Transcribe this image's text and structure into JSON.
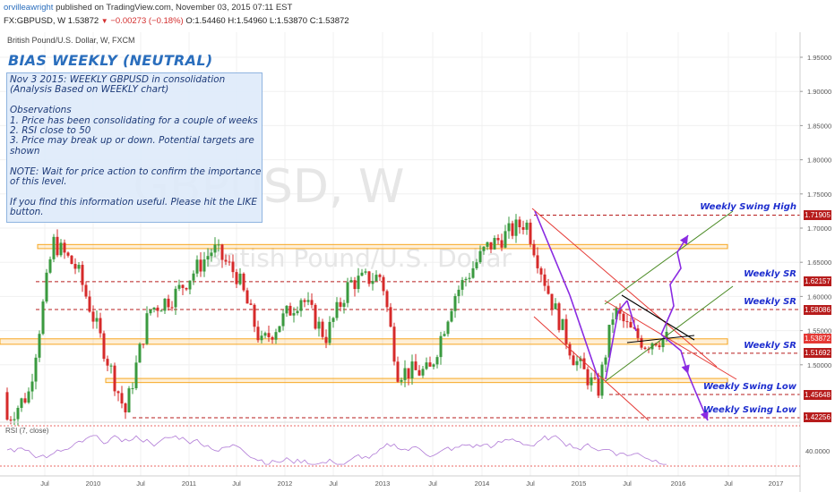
{
  "header": {
    "author": "orvilleawright",
    "published": "published on TradingView.com, November 03, 2015 07:11 EST",
    "symbol": "FX:GBPUSD, W",
    "last": "1.53872",
    "change": "−0.00273 (−0.18%)",
    "ohlc": "O:1.54460 H:1.54960 L:1.53870 C:1.53872"
  },
  "chart_title": "British Pound/U.S. Dollar, W, FXCM",
  "watermark": {
    "symbol": "GBPUSD, W",
    "name": "British Pound/U.S. Dollar"
  },
  "bias_title": "BIAS WEEKLY (NEUTRAL)",
  "note_lines": [
    "Nov 3 2015: WEEKLY GBPUSD in consolidation",
    "(Analysis Based on WEEKLY chart)",
    "",
    "Observations",
    "1. Price has been consolidating for a couple of weeks",
    "2. RSI close to 50",
    "3. Price may break up or down. Potential targets are",
    "shown",
    "",
    "NOTE: Wait for price action to confirm the importance",
    "of this level.",
    "",
    "If you find this information useful. Please hit the LIKE",
    "button."
  ],
  "level_labels": [
    {
      "text": "Weekly Swing High",
      "price": 1.71905
    },
    {
      "text": "Weekly SR",
      "price": 1.62157
    },
    {
      "text": "Weekly SR",
      "price": 1.58086
    },
    {
      "text": "Weekly SR",
      "price": 1.51692
    },
    {
      "text": "Weekly Swing Low",
      "price": 1.45648
    },
    {
      "text": "Weekly Swing Low",
      "price": 1.42256
    }
  ],
  "price_tags": [
    {
      "text": "1.71905",
      "color": "#b71c1c"
    },
    {
      "text": "1.62157",
      "color": "#b71c1c"
    },
    {
      "text": "1.58086",
      "color": "#b71c1c"
    },
    {
      "text": "1.53872",
      "color": "#e53935"
    },
    {
      "text": "1.51692",
      "color": "#b71c1c"
    },
    {
      "text": "1.45648",
      "color": "#b71c1c"
    },
    {
      "text": "1.42256",
      "color": "#b71c1c"
    }
  ],
  "rsi_label": "RSI (7, close)",
  "rsi_tick": "40.0000",
  "colors": {
    "up_candle": "#3a9a3f",
    "down_candle": "#d62a2a",
    "sr_line": "#b71c1c",
    "zone": "#f7a823",
    "channel_red": "#e53935",
    "channel_green": "#4a8a23",
    "arrow": "#8a2be2",
    "rsi_line": "#b07ad6",
    "label_blue": "#1f2fcf"
  },
  "chart_data": {
    "type": "candlestick",
    "title": "British Pound/U.S. Dollar, W, FXCM",
    "y_range": [
      1.395,
      1.985
    ],
    "y_ticks": [
      1.95,
      1.9,
      1.85,
      1.8,
      1.75,
      1.7,
      1.65,
      1.6,
      1.55,
      1.5
    ],
    "x_ticks": [
      "Jul",
      "2010",
      "Jul",
      "2011",
      "Jul",
      "2012",
      "Jul",
      "2013",
      "Jul",
      "2014",
      "Jul",
      "2015",
      "Jul",
      "2016",
      "Jul",
      "2017"
    ],
    "horizontal_levels": [
      1.71905,
      1.62157,
      1.58086,
      1.51692,
      1.45648,
      1.42256
    ],
    "zones": [
      [
        1.67,
        1.676
      ],
      [
        1.53,
        1.538
      ],
      [
        1.474,
        1.48
      ]
    ],
    "last_close": 1.53872,
    "approx_price_path": [
      [
        "2009-05",
        1.46
      ],
      [
        "2009-08",
        1.68
      ],
      [
        "2009-11",
        1.64
      ],
      [
        "2010-03",
        1.5
      ],
      [
        "2010-05",
        1.43
      ],
      [
        "2010-08",
        1.58
      ],
      [
        "2010-11",
        1.6
      ],
      [
        "2011-04",
        1.67
      ],
      [
        "2011-07",
        1.63
      ],
      [
        "2011-10",
        1.53
      ],
      [
        "2012-03",
        1.6
      ],
      [
        "2012-06",
        1.54
      ],
      [
        "2012-09",
        1.62
      ],
      [
        "2013-01",
        1.63
      ],
      [
        "2013-03",
        1.49
      ],
      [
        "2013-07",
        1.49
      ],
      [
        "2013-10",
        1.6
      ],
      [
        "2014-02",
        1.67
      ],
      [
        "2014-07",
        1.71
      ],
      [
        "2014-10",
        1.6
      ],
      [
        "2015-01",
        1.51
      ],
      [
        "2015-04",
        1.46
      ],
      [
        "2015-06",
        1.58
      ],
      [
        "2015-08",
        1.55
      ],
      [
        "2015-10",
        1.53
      ],
      [
        "2015-11",
        1.538
      ]
    ],
    "rsi": {
      "name": "RSI (7, close)",
      "ticks": [
        40
      ]
    }
  }
}
